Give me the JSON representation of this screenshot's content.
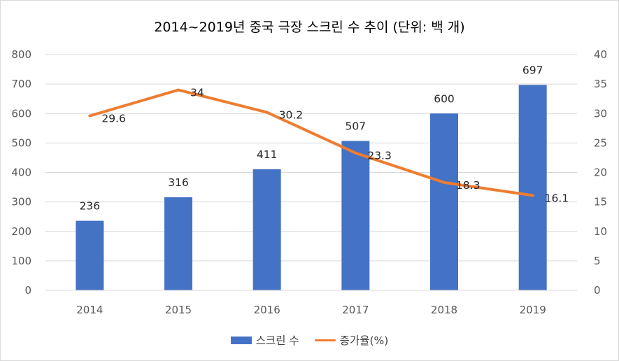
{
  "chart_data": {
    "type": "bar",
    "title": "2014~2019년 중국 극장 스크린 수 추이 (단위: 백 개)",
    "categories": [
      "2014",
      "2015",
      "2016",
      "2017",
      "2018",
      "2019"
    ],
    "series": [
      {
        "name": "스크린 수",
        "type": "bar",
        "axis": "left",
        "color": "#4472C4",
        "values": [
          236,
          316,
          411,
          507,
          600,
          697
        ],
        "labels": [
          "236",
          "316",
          "411",
          "507",
          "600",
          "697"
        ]
      },
      {
        "name": "증가율(%)",
        "type": "line",
        "axis": "right",
        "color": "#ED7D31",
        "values": [
          29.6,
          34,
          30.2,
          23.3,
          18.3,
          16.1
        ],
        "labels": [
          "29.6",
          "34",
          "30.2",
          "23.3",
          "18.3",
          "16.1"
        ]
      }
    ],
    "ylim_left": [
      0,
      800
    ],
    "yticks_left": [
      "0",
      "100",
      "200",
      "300",
      "400",
      "500",
      "600",
      "700",
      "800"
    ],
    "ylim_right": [
      0,
      40
    ],
    "yticks_right": [
      "0",
      "5",
      "10",
      "15",
      "20",
      "25",
      "30",
      "35",
      "40"
    ],
    "grid": true,
    "legend_position": "bottom"
  }
}
